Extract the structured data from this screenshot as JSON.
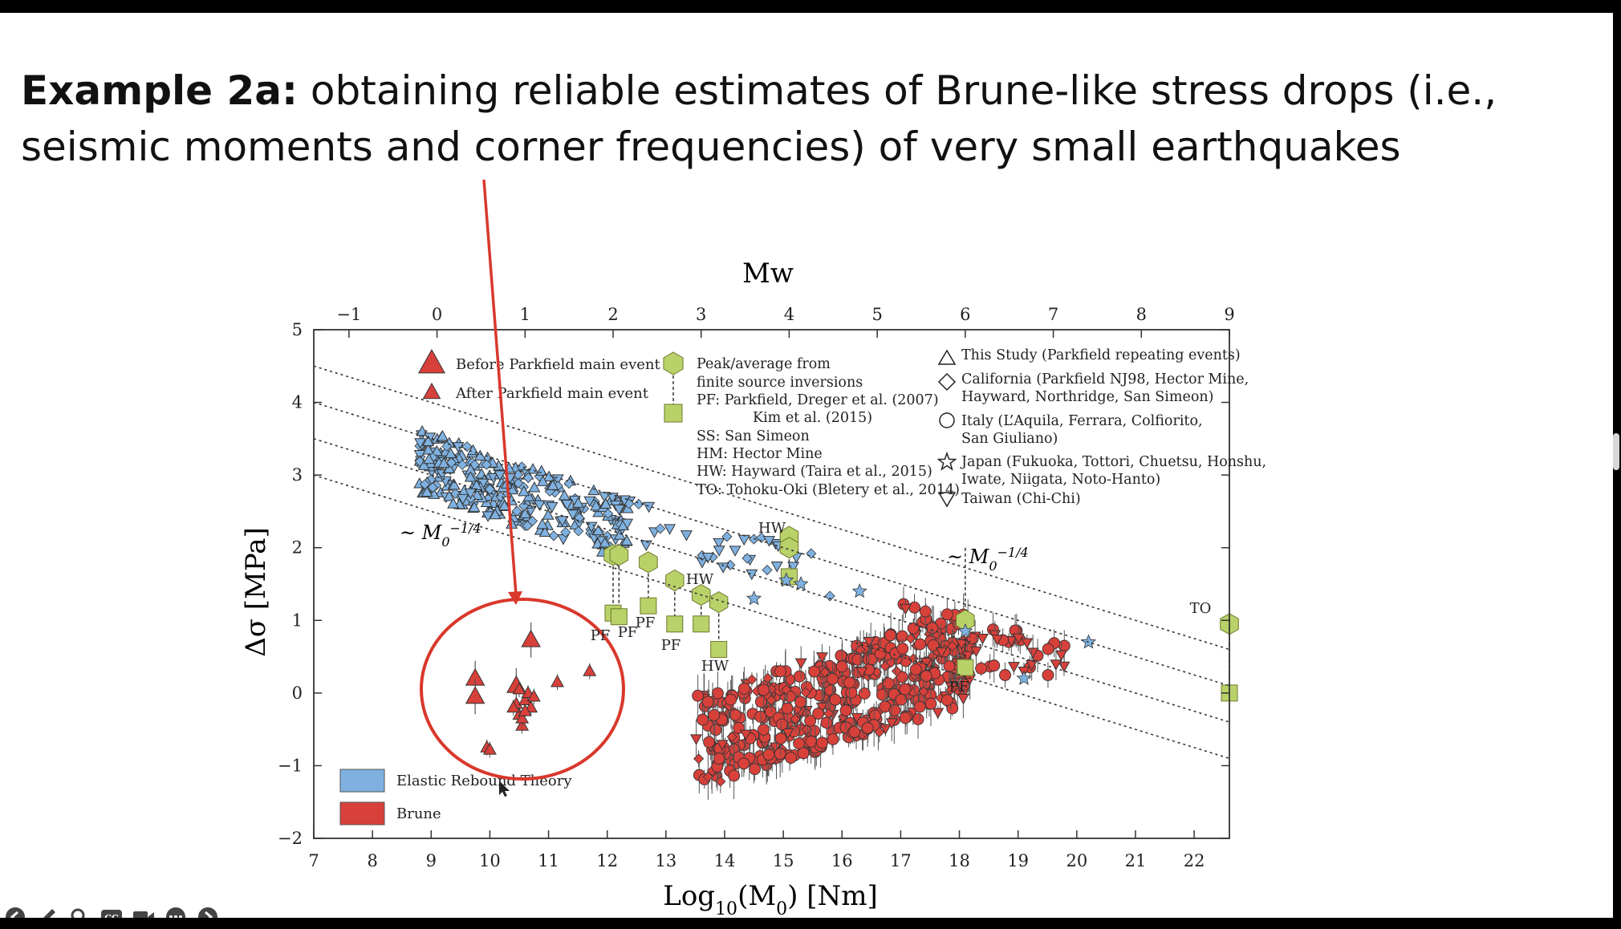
{
  "slide": {
    "title_bold": "Example 2a:",
    "title_rest": " obtaining reliable estimates of Brune-like stress drops (i.e., seismic moments and corner frequencies) of very small earthquakes"
  },
  "toolbar": {
    "cc_glyph": "CC"
  },
  "chart_data": {
    "type": "scatter",
    "top_axis_label": "Mw",
    "xlabel_parts": [
      "Log",
      "10",
      "(M",
      "0",
      ") [Nm]"
    ],
    "ylabel": "Δσ  [MPa]",
    "xlim": [
      7,
      22.6
    ],
    "ylim": [
      -2,
      5
    ],
    "x_ticks": [
      7,
      8,
      9,
      10,
      11,
      12,
      13,
      14,
      15,
      16,
      17,
      18,
      19,
      20,
      21,
      22
    ],
    "y_ticks": [
      -2,
      -1,
      0,
      1,
      2,
      3,
      4,
      5
    ],
    "y_tick_labels": [
      "−2",
      "−1",
      "0",
      "1",
      "2",
      "3",
      "4",
      "5"
    ],
    "top_ticks": [
      -1,
      0,
      1,
      2,
      3,
      4,
      5,
      6,
      7,
      8,
      9
    ],
    "top_tick_labels": [
      "−1",
      "0",
      "1",
      "2",
      "3",
      "4",
      "5",
      "6",
      "7",
      "8",
      "9"
    ],
    "slope_label_parts": [
      "~ M",
      "0",
      "−1/4"
    ],
    "reference_lines": [
      {
        "x": [
          7,
          22.6
        ],
        "y": [
          4.5,
          0.6
        ]
      },
      {
        "x": [
          7,
          22.6
        ],
        "y": [
          4.0,
          0.1
        ]
      },
      {
        "x": [
          7,
          22.6
        ],
        "y": [
          3.5,
          -0.4
        ]
      },
      {
        "x": [
          7,
          22.6
        ],
        "y": [
          3.0,
          -0.9
        ]
      }
    ],
    "colors": {
      "elastic_rebound": "#7fb1e0",
      "brune": "#d8403a",
      "finite_source": "#b9d169",
      "edge": "#333333"
    },
    "series": [
      {
        "name": "Before Parkfield main event",
        "marker": "triangle-large",
        "x": [
          9.75,
          9.75,
          10.7,
          10.45
        ],
        "y": [
          0.2,
          -0.05,
          0.73,
          0.1
        ]
      },
      {
        "name": "After Parkfield main event",
        "marker": "triangle-small",
        "x": [
          9.95,
          10.0,
          10.45,
          10.5,
          10.55,
          10.6,
          10.65,
          10.7,
          10.5,
          10.75,
          10.4,
          11.15,
          11.7,
          10.55,
          10.6
        ],
        "y": [
          -0.75,
          -0.78,
          -0.15,
          -0.3,
          -0.45,
          -0.1,
          0.0,
          -0.2,
          0.05,
          -0.05,
          -0.2,
          0.15,
          0.3,
          -0.35,
          -0.25
        ]
      },
      {
        "name": "Peak/average from finite source inversions",
        "marker": "hexagon",
        "x": [
          12.1,
          12.2,
          12.7,
          13.15,
          13.6,
          13.9,
          15.1,
          15.1,
          18.1,
          22.6
        ],
        "y": [
          1.9,
          1.9,
          1.8,
          1.55,
          1.35,
          1.25,
          2.15,
          2.0,
          1.0,
          0.95
        ]
      },
      {
        "name": "Peak/average from finite source inversions (average)",
        "marker": "square",
        "x": [
          12.1,
          12.2,
          12.7,
          13.15,
          13.6,
          13.9,
          15.1,
          18.1,
          22.6
        ],
        "y": [
          1.1,
          1.05,
          1.2,
          0.95,
          0.95,
          0.6,
          1.6,
          0.35,
          0.0
        ]
      },
      {
        "name": "Japan",
        "marker": "star",
        "x": [
          14.5,
          15.05,
          15.3,
          16.3,
          18.1,
          19.1,
          20.2
        ],
        "y": [
          1.3,
          1.55,
          1.5,
          1.4,
          0.85,
          0.2,
          0.7
        ]
      }
    ],
    "annotations": [
      "PF",
      "PF",
      "PF",
      "PF",
      "HW",
      "HW",
      "HW",
      "PF",
      "TO"
    ],
    "legend_left": [
      "Before Parkfield main event",
      "After Parkfield main event"
    ],
    "legend_middle": [
      "Peak/average from",
      "finite source inversions",
      "PF: Parkfield, Dreger et al. (2007)",
      "Kim et al. (2015)",
      "SS: San Simeon",
      "HM: Hector Mine",
      "HW: Hayward (Taira et al., 2015)",
      "TO: Tohoku-Oki (Bletery et al., 2014)"
    ],
    "legend_right": [
      "This Study (Parkfield repeating events)",
      "California (Parkfield NJ98, Hector Mine,",
      "Hayward, Northridge, San Simeon)",
      "Italy (L’Aquila, Ferrara, Colfiorito,",
      "San Giuliano)",
      "Japan (Fukuoka, Tottori, Chuetsu, Honshu,",
      "Iwate, Niigata, Noto-Hanto)",
      "Taiwan (Chi-Chi)"
    ],
    "legend_bottom": [
      "Elastic Rebound Theory",
      "Brune"
    ]
  }
}
